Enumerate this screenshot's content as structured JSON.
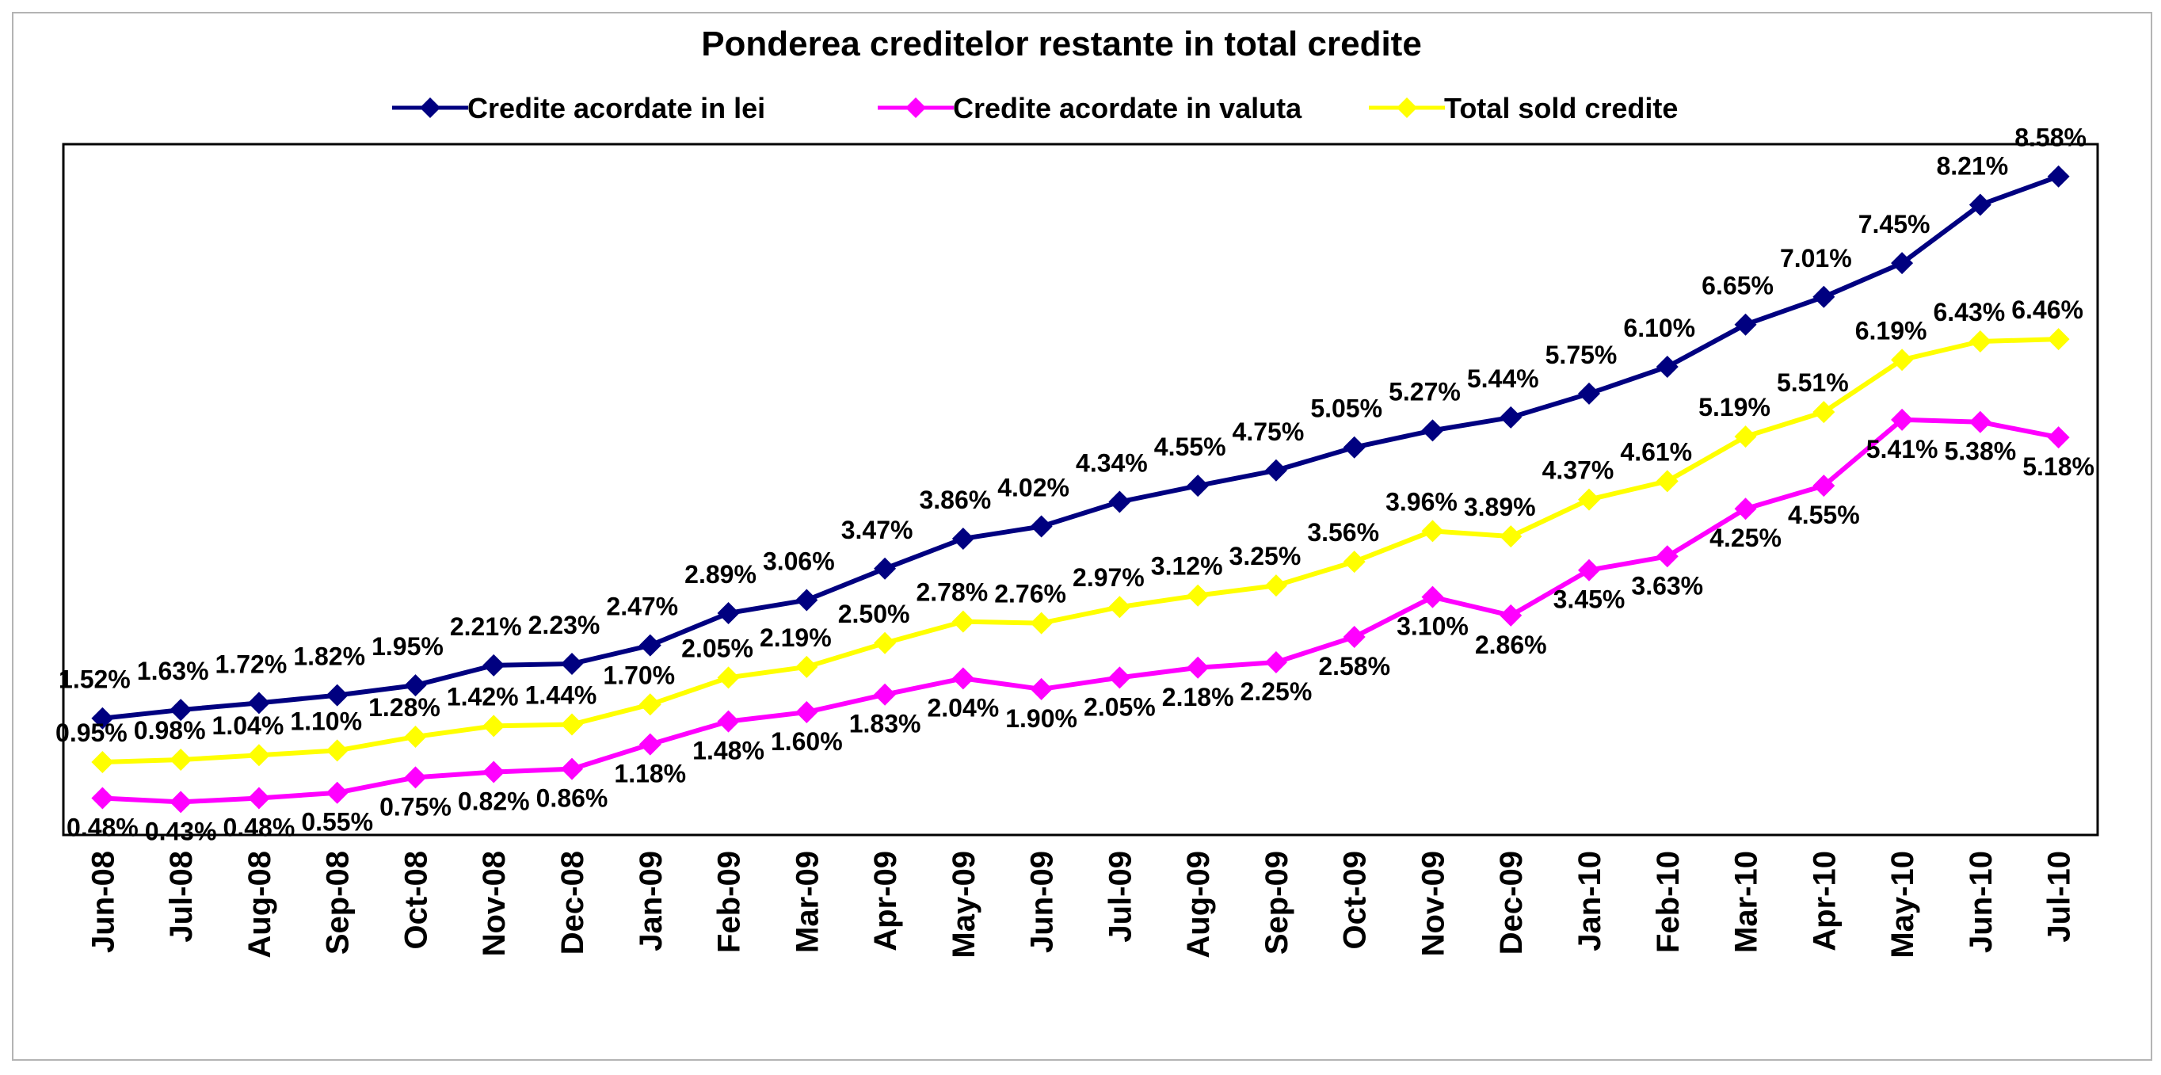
{
  "chart_data": {
    "type": "line",
    "title": "Ponderea creditelor restante in total credite",
    "xlabel": "",
    "ylabel": "",
    "ylim": [
      0,
      9
    ],
    "grid": false,
    "legend_position": "top",
    "categories": [
      "Jun-08",
      "Jul-08",
      "Aug-08",
      "Sep-08",
      "Oct-08",
      "Nov-08",
      "Dec-08",
      "Jan-09",
      "Feb-09",
      "Mar-09",
      "Apr-09",
      "May-09",
      "Jun-09",
      "Jul-09",
      "Aug-09",
      "Sep-09",
      "Oct-09",
      "Nov-09",
      "Dec-09",
      "Jan-10",
      "Feb-10",
      "Mar-10",
      "Apr-10",
      "May-10",
      "Jun-10",
      "Jul-10"
    ],
    "series": [
      {
        "name": "Credite acordate in lei",
        "color": "#000080",
        "marker": "diamond",
        "values": [
          1.52,
          1.63,
          1.72,
          1.82,
          1.95,
          2.21,
          2.23,
          2.47,
          2.89,
          3.06,
          3.47,
          3.86,
          4.02,
          4.34,
          4.55,
          4.75,
          5.05,
          5.27,
          5.44,
          5.75,
          6.1,
          6.65,
          7.01,
          7.45,
          8.21,
          8.58
        ],
        "labels": [
          "1.52%",
          "1.63%",
          "1.72%",
          "1.82%",
          "1.95%",
          "2.21%",
          "2.23%",
          "2.47%",
          "2.89%",
          "3.06%",
          "3.47%",
          "3.86%",
          "4.02%",
          "4.34%",
          "4.55%",
          "4.75%",
          "5.05%",
          "5.27%",
          "5.44%",
          "5.75%",
          "6.10%",
          "6.65%",
          "7.01%",
          "7.45%",
          "8.21%",
          "8.58%"
        ]
      },
      {
        "name": "Credite acordate in valuta",
        "color": "#FF00FF",
        "marker": "diamond",
        "values": [
          0.48,
          0.43,
          0.48,
          0.55,
          0.75,
          0.82,
          0.86,
          1.18,
          1.48,
          1.6,
          1.83,
          2.04,
          1.9,
          2.05,
          2.18,
          2.25,
          2.58,
          3.1,
          2.86,
          3.45,
          3.63,
          4.25,
          4.55,
          5.41,
          5.38,
          5.18
        ],
        "labels": [
          "0.48%",
          "0.43%",
          "0.48%",
          "0.55%",
          "0.75%",
          "0.82%",
          "0.86%",
          "1.18%",
          "1.48%",
          "1.60%",
          "1.83%",
          "2.04%",
          "1.90%",
          "2.05%",
          "2.18%",
          "2.25%",
          "2.58%",
          "3.10%",
          "2.86%",
          "3.45%",
          "3.63%",
          "4.25%",
          "4.55%",
          "5.41%",
          "5.38%",
          "5.18%"
        ]
      },
      {
        "name": "Total sold credite",
        "color": "#FFFF00",
        "marker": "diamond",
        "values": [
          0.95,
          0.98,
          1.04,
          1.1,
          1.28,
          1.42,
          1.44,
          1.7,
          2.05,
          2.19,
          2.5,
          2.78,
          2.76,
          2.97,
          3.12,
          3.25,
          3.56,
          3.96,
          3.89,
          4.37,
          4.61,
          5.19,
          5.51,
          6.19,
          6.43,
          6.46
        ],
        "labels": [
          "0.95%",
          "0.98%",
          "1.04%",
          "1.10%",
          "1.28%",
          "1.42%",
          "1.44%",
          "1.70%",
          "2.05%",
          "2.19%",
          "2.50%",
          "2.78%",
          "2.76%",
          "2.97%",
          "3.12%",
          "3.25%",
          "3.56%",
          "3.96%",
          "3.89%",
          "4.37%",
          "4.61%",
          "5.19%",
          "5.51%",
          "6.19%",
          "6.43%",
          "6.46%"
        ]
      }
    ]
  }
}
